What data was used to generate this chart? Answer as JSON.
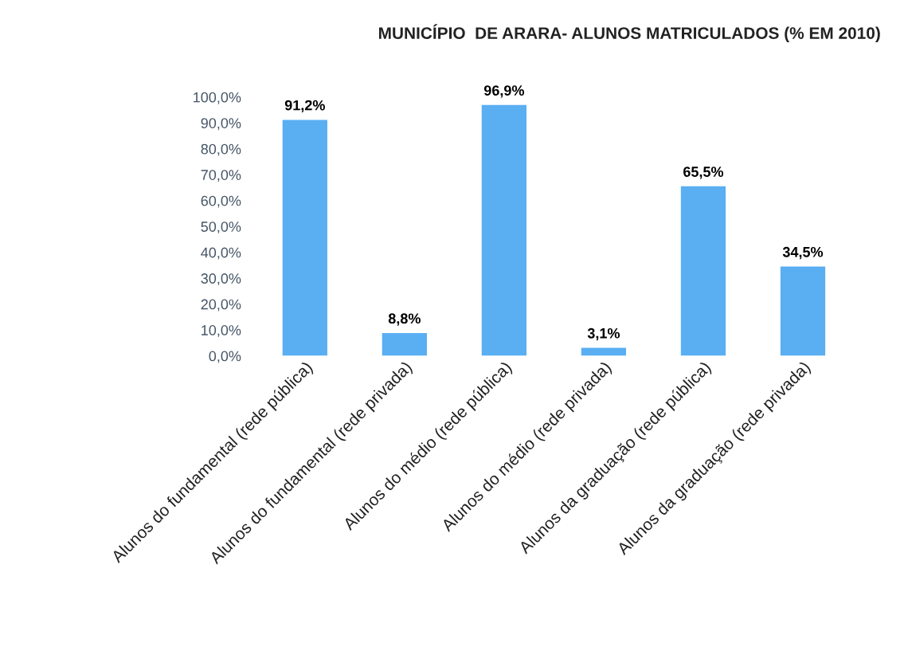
{
  "chart_data": {
    "type": "bar",
    "title": "MUNICÍPIO  DE ARARA- ALUNOS MATRICULADOS (% EM 2010)",
    "categories": [
      "Alunos do fundamental (rede pública)",
      "Alunos do fundamental (rede privada)",
      "Alunos do médio (rede pública)",
      "Alunos do médio (rede privada)",
      "Alunos da graduação (rede pública)",
      "Alunos da graduação (rede privada)"
    ],
    "values": [
      91.2,
      8.8,
      96.9,
      3.1,
      65.5,
      34.5
    ],
    "value_labels": [
      "91,2%",
      "8,8%",
      "96,9%",
      "3,1%",
      "65,5%",
      "34,5%"
    ],
    "color": "#5aaef2",
    "ylim": [
      0,
      100
    ],
    "yticks": [
      {
        "value": 0,
        "label": "0,0%"
      },
      {
        "value": 10,
        "label": "10,0%"
      },
      {
        "value": 20,
        "label": "20,0%"
      },
      {
        "value": 30,
        "label": "30,0%"
      },
      {
        "value": 40,
        "label": "40,0%"
      },
      {
        "value": 50,
        "label": "50,0%"
      },
      {
        "value": 60,
        "label": "60,0%"
      },
      {
        "value": 70,
        "label": "70,0%"
      },
      {
        "value": 80,
        "label": "80,0%"
      },
      {
        "value": 90,
        "label": "90,0%"
      },
      {
        "value": 100,
        "label": "100,0%"
      }
    ],
    "grid": false
  }
}
